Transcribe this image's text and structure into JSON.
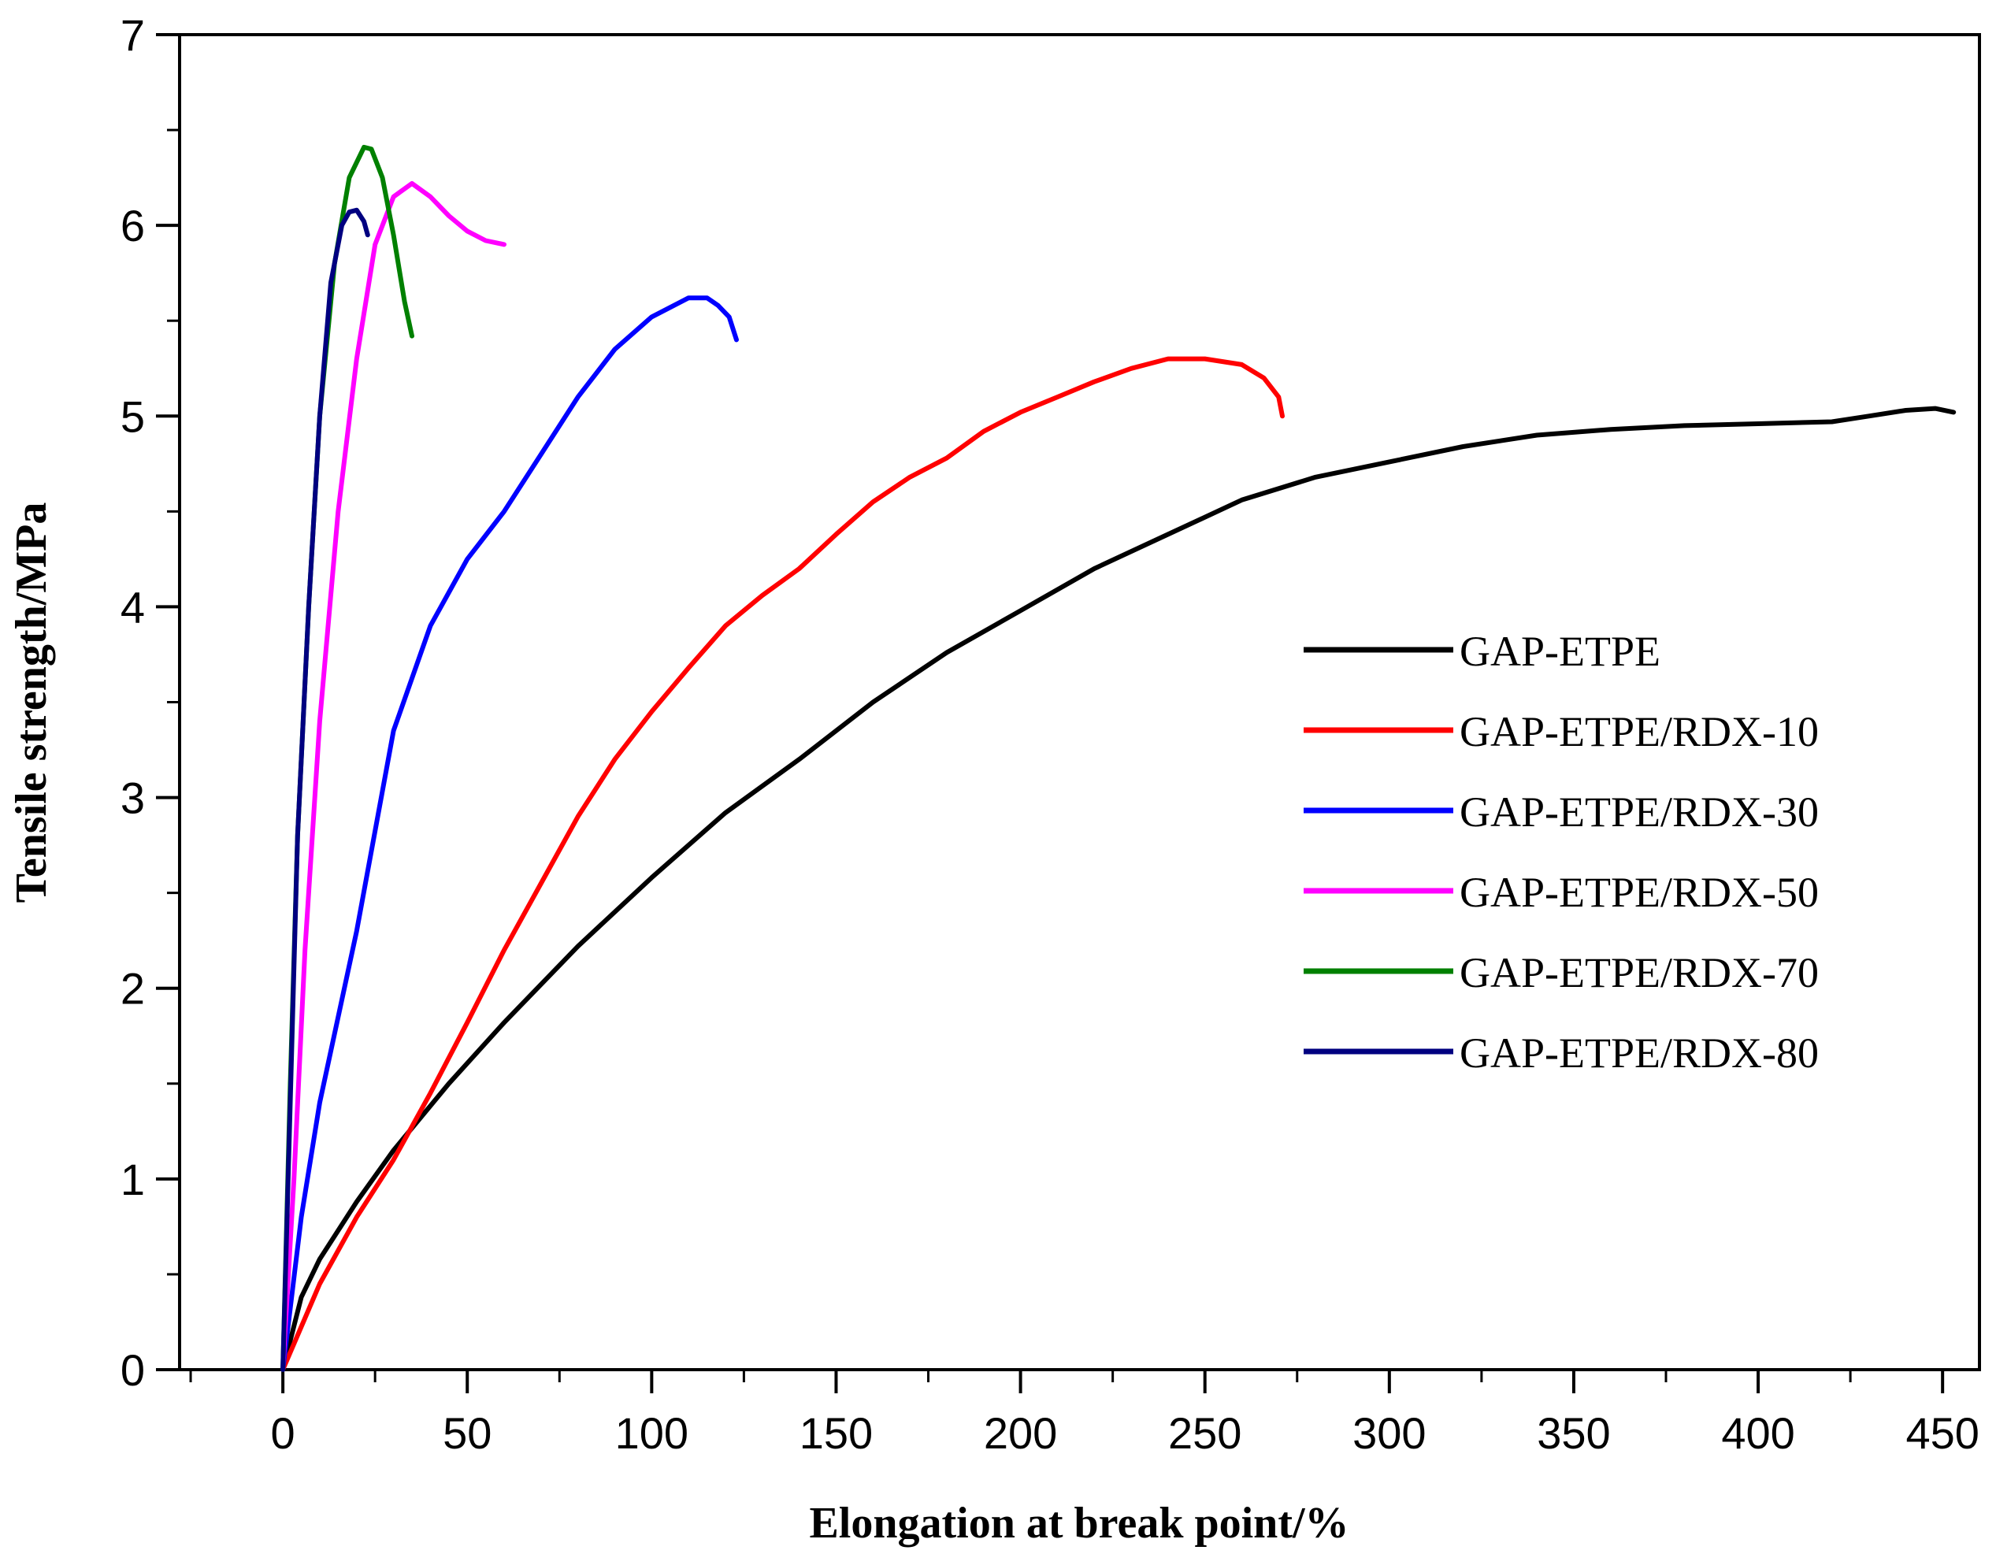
{
  "chart_data": {
    "type": "line",
    "title": "",
    "xlabel": "Elongation at break point/%",
    "ylabel": "Tensile strength/MPa",
    "xlim": [
      -28,
      460
    ],
    "ylim": [
      0,
      7
    ],
    "xticks": [
      0,
      50,
      100,
      150,
      200,
      250,
      300,
      350,
      400,
      450
    ],
    "yticks": [
      0,
      1,
      2,
      3,
      4,
      5,
      6,
      7
    ],
    "grid": false,
    "legend_position": "center-right",
    "series": [
      {
        "name": "GAP-ETPE",
        "color": "#000000",
        "x": [
          0,
          5,
          10,
          20,
          30,
          45,
          60,
          80,
          100,
          120,
          140,
          160,
          180,
          200,
          220,
          240,
          260,
          280,
          300,
          320,
          340,
          360,
          380,
          400,
          420,
          430,
          440,
          448,
          453
        ],
        "y": [
          0,
          0.38,
          0.58,
          0.88,
          1.15,
          1.5,
          1.82,
          2.22,
          2.58,
          2.92,
          3.2,
          3.5,
          3.76,
          3.98,
          4.2,
          4.38,
          4.56,
          4.68,
          4.76,
          4.84,
          4.9,
          4.93,
          4.95,
          4.96,
          4.97,
          5.0,
          5.03,
          5.04,
          5.02
        ]
      },
      {
        "name": "GAP-ETPE/RDX-10",
        "color": "#ff0000",
        "x": [
          0,
          10,
          20,
          30,
          40,
          50,
          60,
          70,
          80,
          90,
          100,
          110,
          120,
          130,
          140,
          150,
          160,
          170,
          180,
          190,
          200,
          210,
          220,
          230,
          240,
          250,
          260,
          266,
          270,
          271
        ],
        "y": [
          0,
          0.45,
          0.8,
          1.1,
          1.45,
          1.82,
          2.2,
          2.55,
          2.9,
          3.2,
          3.45,
          3.68,
          3.9,
          4.06,
          4.2,
          4.38,
          4.55,
          4.68,
          4.78,
          4.92,
          5.02,
          5.1,
          5.18,
          5.25,
          5.3,
          5.3,
          5.27,
          5.2,
          5.1,
          5.0
        ]
      },
      {
        "name": "GAP-ETPE/RDX-30",
        "color": "#0000ff",
        "x": [
          0,
          5,
          10,
          20,
          30,
          40,
          50,
          60,
          70,
          80,
          90,
          100,
          110,
          115,
          118,
          121,
          123
        ],
        "y": [
          0,
          0.8,
          1.4,
          2.3,
          3.35,
          3.9,
          4.25,
          4.5,
          4.8,
          5.1,
          5.35,
          5.52,
          5.62,
          5.62,
          5.58,
          5.52,
          5.4
        ]
      },
      {
        "name": "GAP-ETPE/RDX-50",
        "color": "#ff00ff",
        "x": [
          0,
          3,
          6,
          10,
          15,
          20,
          25,
          30,
          35,
          40,
          45,
          50,
          55,
          60
        ],
        "y": [
          0,
          1.0,
          2.2,
          3.4,
          4.5,
          5.3,
          5.9,
          6.15,
          6.22,
          6.15,
          6.05,
          5.97,
          5.92,
          5.9
        ]
      },
      {
        "name": "GAP-ETPE/RDX-70",
        "color": "#008000",
        "x": [
          0,
          2,
          4,
          7,
          10,
          14,
          18,
          22,
          24,
          27,
          30,
          33,
          35
        ],
        "y": [
          0,
          1.5,
          2.8,
          4.0,
          5.0,
          5.8,
          6.25,
          6.41,
          6.4,
          6.25,
          5.95,
          5.6,
          5.42
        ]
      },
      {
        "name": "GAP-ETPE/RDX-80",
        "color": "#000080",
        "x": [
          0,
          2,
          4,
          7,
          10,
          13,
          16,
          18,
          20,
          22,
          23
        ],
        "y": [
          0,
          1.4,
          2.8,
          4.0,
          5.0,
          5.7,
          6.0,
          6.07,
          6.08,
          6.02,
          5.95
        ]
      }
    ]
  }
}
